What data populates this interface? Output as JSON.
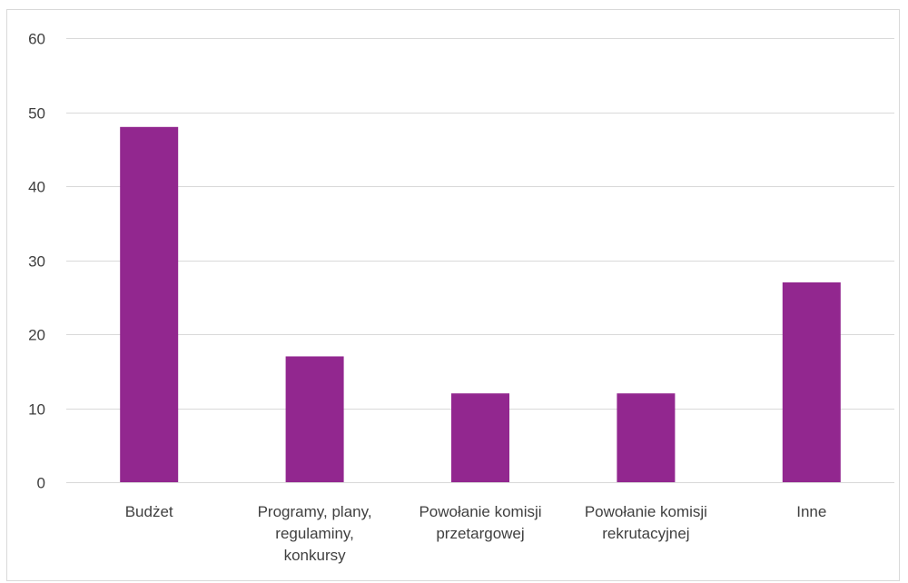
{
  "chart_data": {
    "type": "bar",
    "categories": [
      [
        "Budżet"
      ],
      [
        "Programy, plany,",
        "regulaminy,",
        "konkursy"
      ],
      [
        "Powołanie komisji",
        "przetargowej"
      ],
      [
        "Powołanie komisji",
        "rekrutacyjnej"
      ],
      [
        "Inne"
      ]
    ],
    "values": [
      48,
      17,
      12,
      12,
      27
    ],
    "title": "",
    "xlabel": "",
    "ylabel": "",
    "ylim": [
      0,
      60
    ],
    "yticks": [
      0,
      10,
      20,
      30,
      40,
      50,
      60
    ],
    "grid": true,
    "legend": "none",
    "bar_color": "#92278f"
  }
}
